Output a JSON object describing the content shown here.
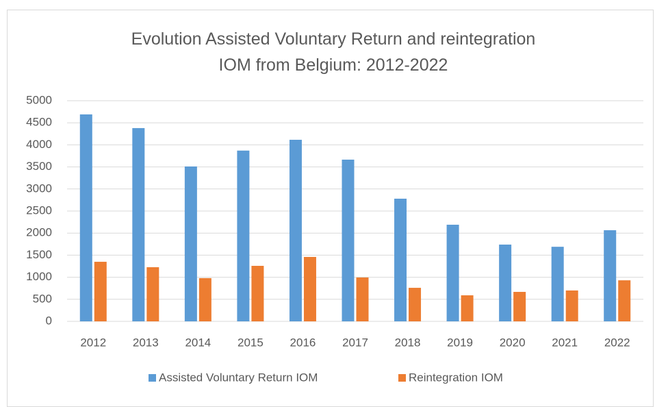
{
  "chart_data": {
    "type": "bar",
    "title": "Evolution Assisted Voluntary Return and reintegration IOM from Belgium: 2012-2022",
    "categories": [
      "2012",
      "2013",
      "2014",
      "2015",
      "2016",
      "2017",
      "2018",
      "2019",
      "2020",
      "2021",
      "2022"
    ],
    "series": [
      {
        "name": "Assisted Voluntary Return IOM",
        "color": "#5b9bd5",
        "values": [
          4690,
          4380,
          3510,
          3870,
          4115,
          3665,
          2780,
          2190,
          1740,
          1690,
          2065
        ]
      },
      {
        "name": "Reintegration IOM",
        "color": "#ed7d31",
        "values": [
          1350,
          1227,
          980,
          1258,
          1460,
          994,
          760,
          590,
          668,
          700,
          930
        ]
      }
    ],
    "ylim": [
      0,
      5000
    ],
    "yticks": [
      0,
      500,
      1000,
      1500,
      2000,
      2500,
      3000,
      3500,
      4000,
      4500,
      5000
    ],
    "grid": true,
    "legend": "bottom"
  }
}
